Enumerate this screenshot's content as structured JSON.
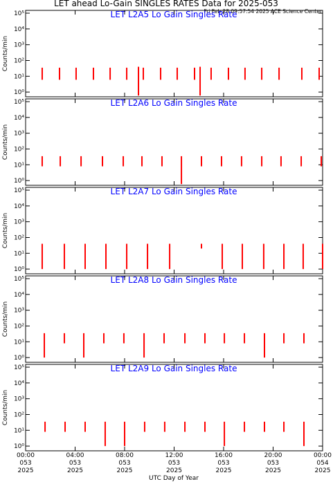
{
  "header": {
    "title": "LET ahead Lo-Gain SINGLES RATES Data for 2025-053",
    "subtitle": "Fri Feb 28 09:57:54 2025 ACE Science Center"
  },
  "x_axis": {
    "xlim": [
      0,
      24
    ],
    "xlabel": "UTC Day of Year",
    "xticks": [
      {
        "value": 0,
        "label": "00:00\n053\n2025"
      },
      {
        "value": 4,
        "label": "04:00\n053\n2025"
      },
      {
        "value": 8,
        "label": "08:00\n053\n2025"
      },
      {
        "value": 12,
        "label": "12:00\n053\n2025"
      },
      {
        "value": 16,
        "label": "16:00\n053\n2025"
      },
      {
        "value": 20,
        "label": "20:00\n053\n2025"
      },
      {
        "value": 24,
        "label": "00:00\n054\n2025"
      }
    ]
  },
  "chart_data": [
    {
      "type": "range",
      "title": "LET L2A5 Lo Gain Singles Rate",
      "ylabel": "Counts/min",
      "log_scale": true,
      "color": "#ff0000",
      "ylim": [
        0.5,
        150000
      ],
      "yticks": [
        {
          "value": 1,
          "label": "10⁰"
        },
        {
          "value": 10,
          "label": "10¹"
        },
        {
          "value": 100,
          "label": "10²"
        },
        {
          "value": 1000,
          "label": "10³"
        },
        {
          "value": 10000,
          "label": "10⁴"
        },
        {
          "value": 100000,
          "label": "10⁵"
        }
      ],
      "x": [
        1.34,
        2.74,
        4.08,
        5.48,
        6.83,
        8.17,
        9.12,
        9.51,
        10.91,
        12.25,
        13.65,
        14.1,
        14.99,
        16.39,
        17.73,
        19.08,
        20.48,
        22.32,
        23.72
      ],
      "high": [
        35,
        35,
        35,
        35,
        35,
        35,
        40,
        35,
        35,
        35,
        35,
        40,
        35,
        35,
        35,
        35,
        35,
        35,
        35
      ],
      "low": [
        6,
        6,
        6,
        6,
        6,
        6,
        0.6,
        6,
        6,
        6,
        6,
        0.6,
        6,
        6,
        6,
        6,
        6,
        6,
        6
      ]
    },
    {
      "type": "range",
      "title": "LET L2A6 Lo Gain Singles Rate",
      "ylabel": "Counts/min",
      "log_scale": true,
      "color": "#ff0000",
      "ylim": [
        0.5,
        150000
      ],
      "yticks": [
        {
          "value": 1,
          "label": "10⁰"
        },
        {
          "value": 10,
          "label": "10¹"
        },
        {
          "value": 100,
          "label": "10²"
        },
        {
          "value": 1000,
          "label": "10³"
        },
        {
          "value": 10000,
          "label": "10⁴"
        },
        {
          "value": 100000,
          "label": "10⁵"
        }
      ],
      "x": [
        1.34,
        2.8,
        4.48,
        6.21,
        7.89,
        9.4,
        11.02,
        12.59,
        14.21,
        15.83,
        17.45,
        19.08,
        20.64,
        22.27,
        23.89
      ],
      "high": [
        35,
        35,
        35,
        35,
        35,
        35,
        35,
        35,
        35,
        35,
        35,
        35,
        35,
        35,
        35
      ],
      "low": [
        8,
        8,
        8,
        8,
        8,
        8,
        8,
        0.6,
        8,
        8,
        8,
        8,
        8,
        8,
        8
      ]
    },
    {
      "type": "range",
      "title": "LET L2A7 Lo Gain Singles Rate",
      "ylabel": "Counts/min",
      "log_scale": true,
      "color": "#ff0000",
      "ylim": [
        0.5,
        150000
      ],
      "yticks": [
        {
          "value": 1,
          "label": "10⁰"
        },
        {
          "value": 10,
          "label": "10¹"
        },
        {
          "value": 100,
          "label": "10²"
        },
        {
          "value": 1000,
          "label": "10³"
        },
        {
          "value": 10000,
          "label": "10⁴"
        },
        {
          "value": 100000,
          "label": "10⁵"
        }
      ],
      "x": [
        1.34,
        3.13,
        4.81,
        6.49,
        8.17,
        9.85,
        11.64,
        14.21,
        15.89,
        17.51,
        19.24,
        20.87,
        22.43,
        24.0
      ],
      "high": [
        40,
        40,
        40,
        40,
        40,
        40,
        40,
        40,
        40,
        40,
        40,
        40,
        40,
        40
      ],
      "low": [
        1,
        1,
        1,
        1,
        1,
        1,
        1,
        20,
        1,
        1,
        1,
        1,
        1,
        1
      ]
    },
    {
      "type": "range",
      "title": "LET L2A8 Lo Gain Singles Rate",
      "ylabel": "Counts/min",
      "log_scale": true,
      "color": "#ff0000",
      "ylim": [
        0.5,
        150000
      ],
      "yticks": [
        {
          "value": 1,
          "label": "10⁰"
        },
        {
          "value": 10,
          "label": "10¹"
        },
        {
          "value": 100,
          "label": "10²"
        },
        {
          "value": 1000,
          "label": "10³"
        },
        {
          "value": 10000,
          "label": "10⁴"
        },
        {
          "value": 100000,
          "label": "10⁵"
        }
      ],
      "x": [
        1.51,
        3.13,
        4.7,
        6.32,
        7.94,
        9.57,
        11.19,
        12.87,
        14.49,
        16.06,
        17.68,
        19.3,
        20.87,
        22.49
      ],
      "high": [
        35,
        35,
        35,
        35,
        35,
        35,
        35,
        35,
        35,
        35,
        35,
        35,
        35,
        35
      ],
      "low": [
        1,
        8,
        1,
        8,
        8,
        1,
        8,
        8,
        8,
        8,
        8,
        1,
        8,
        8
      ]
    },
    {
      "type": "range",
      "title": "LET L2A9 Lo Gain Singles Rate",
      "ylabel": "Counts/min",
      "log_scale": true,
      "color": "#ff0000",
      "ylim": [
        0.5,
        150000
      ],
      "yticks": [
        {
          "value": 1,
          "label": "10⁰"
        },
        {
          "value": 10,
          "label": "10¹"
        },
        {
          "value": 100,
          "label": "10²"
        },
        {
          "value": 1000,
          "label": "10³"
        },
        {
          "value": 10000,
          "label": "10⁴"
        },
        {
          "value": 100000,
          "label": "10⁵"
        }
      ],
      "x": [
        1.57,
        3.19,
        4.81,
        6.43,
        8.0,
        9.62,
        11.24,
        12.87,
        14.49,
        16.06,
        17.68,
        19.3,
        20.87,
        22.49
      ],
      "high": [
        35,
        35,
        35,
        35,
        35,
        35,
        35,
        35,
        35,
        35,
        35,
        35,
        35,
        35
      ],
      "low": [
        8,
        8,
        8,
        1,
        1,
        8,
        8,
        8,
        8,
        1,
        8,
        8,
        8,
        1
      ]
    }
  ]
}
